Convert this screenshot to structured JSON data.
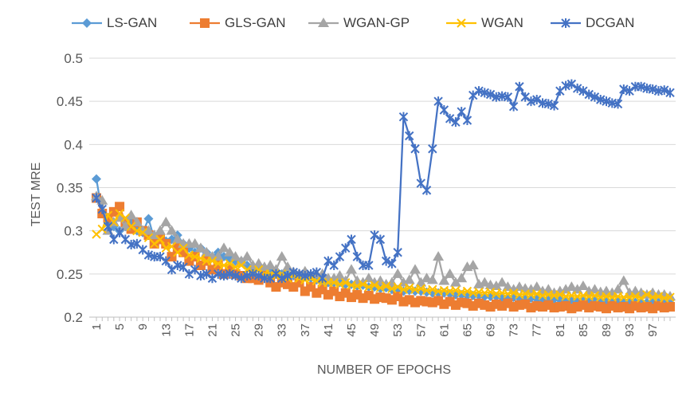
{
  "chart_data": {
    "type": "line",
    "title": "",
    "xlabel": "NUMBER OF EPOCHS",
    "ylabel": "TEST MRE",
    "ylim": [
      0.2,
      0.5
    ],
    "yticks": [
      "0.2",
      "0.25",
      "0.3",
      "0.35",
      "0.4",
      "0.45",
      "0.5"
    ],
    "xtick_labels": [
      "1",
      "5",
      "9",
      "13",
      "17",
      "21",
      "25",
      "29",
      "33",
      "37",
      "41",
      "45",
      "49",
      "53",
      "57",
      "61",
      "65",
      "69",
      "73",
      "77",
      "81",
      "85",
      "89",
      "93",
      "97"
    ],
    "grid": "horizontal",
    "legend_position": "top",
    "x": [
      1,
      2,
      3,
      4,
      5,
      6,
      7,
      8,
      9,
      10,
      11,
      12,
      13,
      14,
      15,
      16,
      17,
      18,
      19,
      20,
      21,
      22,
      23,
      24,
      25,
      26,
      27,
      28,
      29,
      30,
      31,
      32,
      33,
      34,
      35,
      36,
      37,
      38,
      39,
      40,
      41,
      42,
      43,
      44,
      45,
      46,
      47,
      48,
      49,
      50,
      51,
      52,
      53,
      54,
      55,
      56,
      57,
      58,
      59,
      60,
      61,
      62,
      63,
      64,
      65,
      66,
      67,
      68,
      69,
      70,
      71,
      72,
      73,
      74,
      75,
      76,
      77,
      78,
      79,
      80,
      81,
      82,
      83,
      84,
      85,
      86,
      87,
      88,
      89,
      90,
      91,
      92,
      93,
      94,
      95,
      96,
      97,
      98,
      99,
      100
    ],
    "series": [
      {
        "name": "LS-GAN",
        "color": "#5B9BD5",
        "marker": "diamond",
        "values": [
          0.36,
          0.32,
          0.31,
          0.305,
          0.3,
          0.305,
          0.31,
          0.3,
          0.298,
          0.314,
          0.29,
          0.295,
          0.288,
          0.29,
          0.295,
          0.285,
          0.28,
          0.275,
          0.28,
          0.275,
          0.27,
          0.275,
          0.27,
          0.268,
          0.265,
          0.265,
          0.26,
          0.258,
          0.26,
          0.255,
          0.255,
          0.252,
          0.25,
          0.25,
          0.248,
          0.245,
          0.247,
          0.245,
          0.243,
          0.242,
          0.24,
          0.24,
          0.24,
          0.238,
          0.238,
          0.236,
          0.237,
          0.235,
          0.235,
          0.233,
          0.234,
          0.232,
          0.232,
          0.23,
          0.231,
          0.23,
          0.23,
          0.229,
          0.228,
          0.228,
          0.228,
          0.227,
          0.226,
          0.226,
          0.225,
          0.225,
          0.225,
          0.224,
          0.224,
          0.224,
          0.223,
          0.223,
          0.223,
          0.222,
          0.222,
          0.222,
          0.221,
          0.221,
          0.221,
          0.221,
          0.22,
          0.22,
          0.22,
          0.22,
          0.219,
          0.219,
          0.219,
          0.219,
          0.218,
          0.218,
          0.218,
          0.218,
          0.218,
          0.217,
          0.217,
          0.217,
          0.217,
          0.217,
          0.216,
          0.216
        ]
      },
      {
        "name": "GLS-GAN",
        "color": "#ED7D31",
        "marker": "square",
        "values": [
          0.338,
          0.32,
          0.315,
          0.322,
          0.328,
          0.31,
          0.302,
          0.31,
          0.3,
          0.295,
          0.285,
          0.29,
          0.285,
          0.27,
          0.28,
          0.275,
          0.265,
          0.27,
          0.26,
          0.265,
          0.255,
          0.26,
          0.25,
          0.255,
          0.25,
          0.248,
          0.245,
          0.245,
          0.243,
          0.25,
          0.24,
          0.235,
          0.24,
          0.238,
          0.235,
          0.24,
          0.23,
          0.235,
          0.228,
          0.232,
          0.226,
          0.23,
          0.224,
          0.228,
          0.223,
          0.226,
          0.222,
          0.225,
          0.221,
          0.223,
          0.222,
          0.22,
          0.224,
          0.218,
          0.22,
          0.217,
          0.219,
          0.218,
          0.217,
          0.219,
          0.215,
          0.218,
          0.214,
          0.217,
          0.216,
          0.213,
          0.216,
          0.214,
          0.212,
          0.215,
          0.213,
          0.216,
          0.212,
          0.214,
          0.215,
          0.211,
          0.213,
          0.212,
          0.214,
          0.211,
          0.212,
          0.213,
          0.21,
          0.212,
          0.214,
          0.211,
          0.213,
          0.212,
          0.21,
          0.213,
          0.211,
          0.212,
          0.21,
          0.213,
          0.211,
          0.212,
          0.21,
          0.213,
          0.211,
          0.212
        ]
      },
      {
        "name": "WGAN-GP",
        "color": "#A5A5A5",
        "marker": "triangle",
        "values": [
          0.34,
          0.335,
          0.3,
          0.31,
          0.315,
          0.305,
          0.318,
          0.31,
          0.3,
          0.3,
          0.295,
          0.3,
          0.31,
          0.3,
          0.29,
          0.285,
          0.285,
          0.285,
          0.28,
          0.275,
          0.27,
          0.27,
          0.28,
          0.275,
          0.27,
          0.265,
          0.27,
          0.26,
          0.262,
          0.258,
          0.26,
          0.255,
          0.27,
          0.258,
          0.252,
          0.25,
          0.253,
          0.248,
          0.25,
          0.25,
          0.245,
          0.245,
          0.248,
          0.242,
          0.255,
          0.242,
          0.24,
          0.245,
          0.24,
          0.242,
          0.238,
          0.24,
          0.25,
          0.24,
          0.243,
          0.255,
          0.24,
          0.245,
          0.243,
          0.27,
          0.242,
          0.25,
          0.24,
          0.245,
          0.258,
          0.26,
          0.238,
          0.24,
          0.237,
          0.236,
          0.24,
          0.235,
          0.232,
          0.235,
          0.233,
          0.232,
          0.235,
          0.23,
          0.232,
          0.228,
          0.23,
          0.232,
          0.235,
          0.232,
          0.236,
          0.23,
          0.232,
          0.229,
          0.23,
          0.228,
          0.232,
          0.242,
          0.228,
          0.23,
          0.228,
          0.226,
          0.228,
          0.226,
          0.226,
          0.224
        ]
      },
      {
        "name": "WGAN",
        "color": "#FFC000",
        "marker": "x",
        "values": [
          0.296,
          0.302,
          0.318,
          0.31,
          0.32,
          0.315,
          0.305,
          0.3,
          0.298,
          0.292,
          0.285,
          0.29,
          0.28,
          0.282,
          0.275,
          0.28,
          0.272,
          0.27,
          0.268,
          0.265,
          0.265,
          0.262,
          0.26,
          0.262,
          0.258,
          0.26,
          0.255,
          0.252,
          0.255,
          0.25,
          0.25,
          0.248,
          0.25,
          0.245,
          0.248,
          0.245,
          0.243,
          0.245,
          0.242,
          0.24,
          0.24,
          0.24,
          0.238,
          0.24,
          0.237,
          0.236,
          0.238,
          0.235,
          0.237,
          0.234,
          0.236,
          0.233,
          0.235,
          0.232,
          0.234,
          0.232,
          0.233,
          0.231,
          0.232,
          0.23,
          0.231,
          0.23,
          0.231,
          0.229,
          0.23,
          0.228,
          0.229,
          0.228,
          0.229,
          0.227,
          0.228,
          0.227,
          0.228,
          0.226,
          0.227,
          0.226,
          0.227,
          0.225,
          0.226,
          0.225,
          0.226,
          0.224,
          0.225,
          0.224,
          0.225,
          0.224,
          0.225,
          0.223,
          0.224,
          0.223,
          0.224,
          0.223,
          0.223,
          0.224,
          0.222,
          0.226,
          0.223,
          0.224,
          0.222,
          0.223
        ]
      },
      {
        "name": "DCGAN",
        "color": "#4472C4",
        "marker": "star",
        "values": [
          0.338,
          0.325,
          0.305,
          0.29,
          0.298,
          0.29,
          0.284,
          0.285,
          0.278,
          0.272,
          0.27,
          0.27,
          0.265,
          0.255,
          0.26,
          0.258,
          0.25,
          0.255,
          0.248,
          0.25,
          0.245,
          0.25,
          0.248,
          0.25,
          0.248,
          0.245,
          0.248,
          0.25,
          0.248,
          0.245,
          0.245,
          0.25,
          0.245,
          0.248,
          0.252,
          0.25,
          0.248,
          0.25,
          0.252,
          0.245,
          0.265,
          0.26,
          0.27,
          0.28,
          0.29,
          0.27,
          0.26,
          0.26,
          0.295,
          0.29,
          0.265,
          0.262,
          0.275,
          0.432,
          0.41,
          0.395,
          0.355,
          0.347,
          0.395,
          0.45,
          0.44,
          0.43,
          0.426,
          0.438,
          0.428,
          0.457,
          0.462,
          0.46,
          0.458,
          0.455,
          0.456,
          0.455,
          0.444,
          0.467,
          0.455,
          0.45,
          0.452,
          0.448,
          0.447,
          0.445,
          0.462,
          0.468,
          0.47,
          0.465,
          0.462,
          0.458,
          0.455,
          0.452,
          0.45,
          0.448,
          0.447,
          0.464,
          0.462,
          0.467,
          0.467,
          0.465,
          0.464,
          0.462,
          0.463,
          0.46
        ]
      }
    ]
  }
}
